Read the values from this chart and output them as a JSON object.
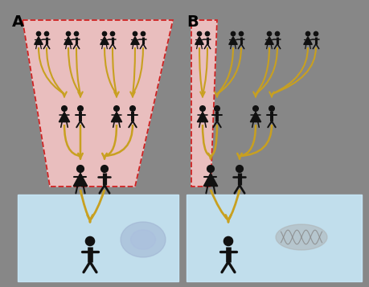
{
  "bg_color": "#878787",
  "panel_a_label": "A",
  "panel_b_label": "B",
  "label_fontsize": 14,
  "pink_fill": "#f5c5c5",
  "dashed_color": "#cc2222",
  "light_blue": "#cceeff",
  "arrow_color": "#c8a020",
  "figure_color": "#111111",
  "fig_w": 4.6,
  "fig_h": 3.57,
  "dpi": 100
}
